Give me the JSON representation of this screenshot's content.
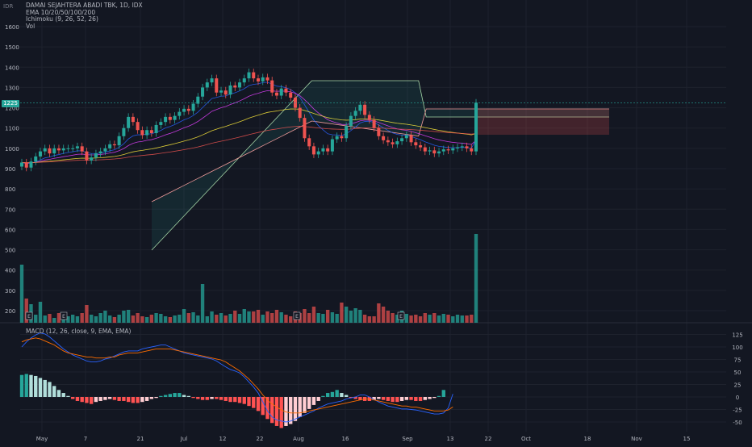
{
  "currency": "IDR",
  "legend": {
    "title": "DAMAI SEJAHTERA ABADI TBK, 1D, IDX",
    "ema": "EMA 10/20/50/100/200",
    "ichimoku": "Ichimoku (9, 26, 52, 26)",
    "vol": "Vol"
  },
  "macd_legend": "MACD (12, 26, close, 9, EMA, EMA)",
  "last_price_label": "1225",
  "colors": {
    "up": "#26a69a",
    "down": "#ef5350",
    "background": "#131722",
    "grid": "#1e222d",
    "macd": "#2962ff",
    "signal": "#ff6d00"
  },
  "chart_data": [
    {
      "type": "candlestick",
      "title": "DAMAI SEJAHTERA ABADI TBK, 1D, IDX",
      "ylim": [
        500,
        1650
      ],
      "price_ticks": [
        1600,
        1500,
        1400,
        1300,
        1200,
        1100,
        1000,
        900,
        800,
        700,
        600,
        500,
        400,
        300,
        200
      ],
      "x_ticks": [
        "May",
        "7",
        "21",
        "Jul",
        "12",
        "22",
        "Aug",
        "16",
        "Sep",
        "13",
        "22",
        "Oct",
        "18",
        "Nov",
        "15"
      ],
      "last_price": 1225,
      "earnings_markers": [
        "E",
        "E",
        "E",
        "E"
      ],
      "candles_note": "daily OHLC approx.",
      "close": [
        930,
        905,
        935,
        960,
        985,
        1000,
        975,
        1000,
        990,
        1000,
        1000,
        1000,
        1010,
        985,
        940,
        955,
        975,
        985,
        1000,
        1020,
        1015,
        1060,
        1100,
        1155,
        1130,
        1090,
        1065,
        1090,
        1075,
        1115,
        1130,
        1155,
        1140,
        1160,
        1180,
        1195,
        1185,
        1220,
        1255,
        1300,
        1325,
        1345,
        1275,
        1285,
        1265,
        1310,
        1300,
        1325,
        1345,
        1375,
        1345,
        1330,
        1350,
        1335,
        1275,
        1260,
        1295,
        1275,
        1250,
        1200,
        1150,
        1050,
        1010,
        970,
        985,
        1000,
        985,
        1045,
        1060,
        1050,
        1110,
        1160,
        1185,
        1215,
        1165,
        1140,
        1100,
        1060,
        1040,
        1030,
        1020,
        1035,
        1050,
        1065,
        1030,
        1015,
        1005,
        985,
        990,
        975,
        985,
        995,
        990,
        1000,
        1005,
        1010,
        1000,
        985,
        1225
      ],
      "volume_note": "relative bars, ylim [0, 100]",
      "volume": [
        72,
        30,
        23,
        10,
        26,
        9,
        11,
        6,
        12,
        5,
        8,
        10,
        8,
        12,
        22,
        10,
        8,
        12,
        15,
        9,
        7,
        10,
        15,
        16,
        9,
        12,
        8,
        7,
        10,
        12,
        11,
        8,
        7,
        9,
        10,
        17,
        12,
        13,
        9,
        48,
        8,
        14,
        10,
        12,
        9,
        11,
        15,
        11,
        17,
        14,
        14,
        16,
        10,
        14,
        12,
        16,
        13,
        10,
        8,
        14,
        12,
        17,
        12,
        20,
        12,
        11,
        16,
        13,
        11,
        25,
        20,
        15,
        18,
        16,
        10,
        8,
        8,
        24,
        20,
        15,
        12,
        10,
        15,
        11,
        9,
        10,
        8,
        12,
        10,
        12,
        9,
        11,
        10,
        8,
        10,
        9,
        9,
        10,
        110
      ]
    },
    {
      "type": "bar",
      "title": "MACD (12, 26, close, 9, EMA, EMA)",
      "ylim": [
        -70,
        140
      ],
      "y_ticks": [
        125,
        100,
        75,
        50,
        25,
        0,
        -25,
        -50
      ],
      "macd": [
        100,
        110,
        118,
        124,
        128,
        126,
        120,
        112,
        104,
        96,
        90,
        84,
        80,
        76,
        72,
        70,
        70,
        72,
        76,
        78,
        82,
        86,
        90,
        92,
        92,
        92,
        96,
        98,
        100,
        102,
        104,
        104,
        100,
        96,
        92,
        88,
        86,
        84,
        82,
        80,
        78,
        76,
        72,
        66,
        60,
        55,
        52,
        48,
        40,
        30,
        20,
        8,
        -10,
        -28,
        -40,
        -46,
        -48,
        -50,
        -48,
        -44,
        -40,
        -36,
        -32,
        -28,
        -22,
        -18,
        -14,
        -12,
        -10,
        -8,
        -4,
        -2,
        0,
        4,
        4,
        0,
        -5,
        -10,
        -14,
        -18,
        -20,
        -22,
        -24,
        -24,
        -25,
        -26,
        -28,
        -30,
        -32,
        -34,
        -34,
        -32,
        -22,
        6
      ],
      "signal": [
        110,
        114,
        116,
        118,
        116,
        112,
        108,
        104,
        98,
        92,
        88,
        86,
        84,
        82,
        80,
        80,
        78,
        78,
        78,
        80,
        80,
        84,
        86,
        88,
        88,
        88,
        90,
        92,
        94,
        96,
        96,
        96,
        96,
        94,
        92,
        90,
        88,
        86,
        84,
        82,
        80,
        78,
        76,
        74,
        70,
        64,
        58,
        52,
        44,
        36,
        26,
        16,
        4,
        -6,
        -14,
        -20,
        -26,
        -30,
        -32,
        -32,
        -32,
        -30,
        -28,
        -26,
        -24,
        -22,
        -20,
        -18,
        -16,
        -14,
        -12,
        -10,
        -8,
        -6,
        -4,
        -4,
        -6,
        -8,
        -10,
        -12,
        -14,
        -16,
        -18,
        -18,
        -20,
        -20,
        -22,
        -24,
        -26,
        -28,
        -28,
        -28,
        -26,
        -20
      ],
      "histogram": [
        44,
        46,
        44,
        42,
        38,
        34,
        30,
        22,
        14,
        8,
        2,
        -4,
        -8,
        -10,
        -12,
        -14,
        -10,
        -8,
        -6,
        -4,
        -6,
        -8,
        -8,
        -10,
        -12,
        -12,
        -10,
        -8,
        -4,
        -2,
        2,
        4,
        6,
        8,
        8,
        4,
        2,
        -2,
        -4,
        -6,
        -6,
        -4,
        -4,
        -6,
        -8,
        -10,
        -10,
        -12,
        -14,
        -18,
        -22,
        -28,
        -36,
        -44,
        -52,
        -58,
        -62,
        -58,
        -54,
        -48,
        -40,
        -32,
        -24,
        -16,
        -8,
        2,
        8,
        10,
        14,
        8,
        4,
        -2,
        -4,
        -6,
        -8,
        -8,
        -6,
        -4,
        -6,
        -8,
        -10,
        -10,
        -8,
        -6,
        -6,
        -8,
        -8,
        -6,
        -4,
        -2,
        2,
        14
      ]
    }
  ]
}
